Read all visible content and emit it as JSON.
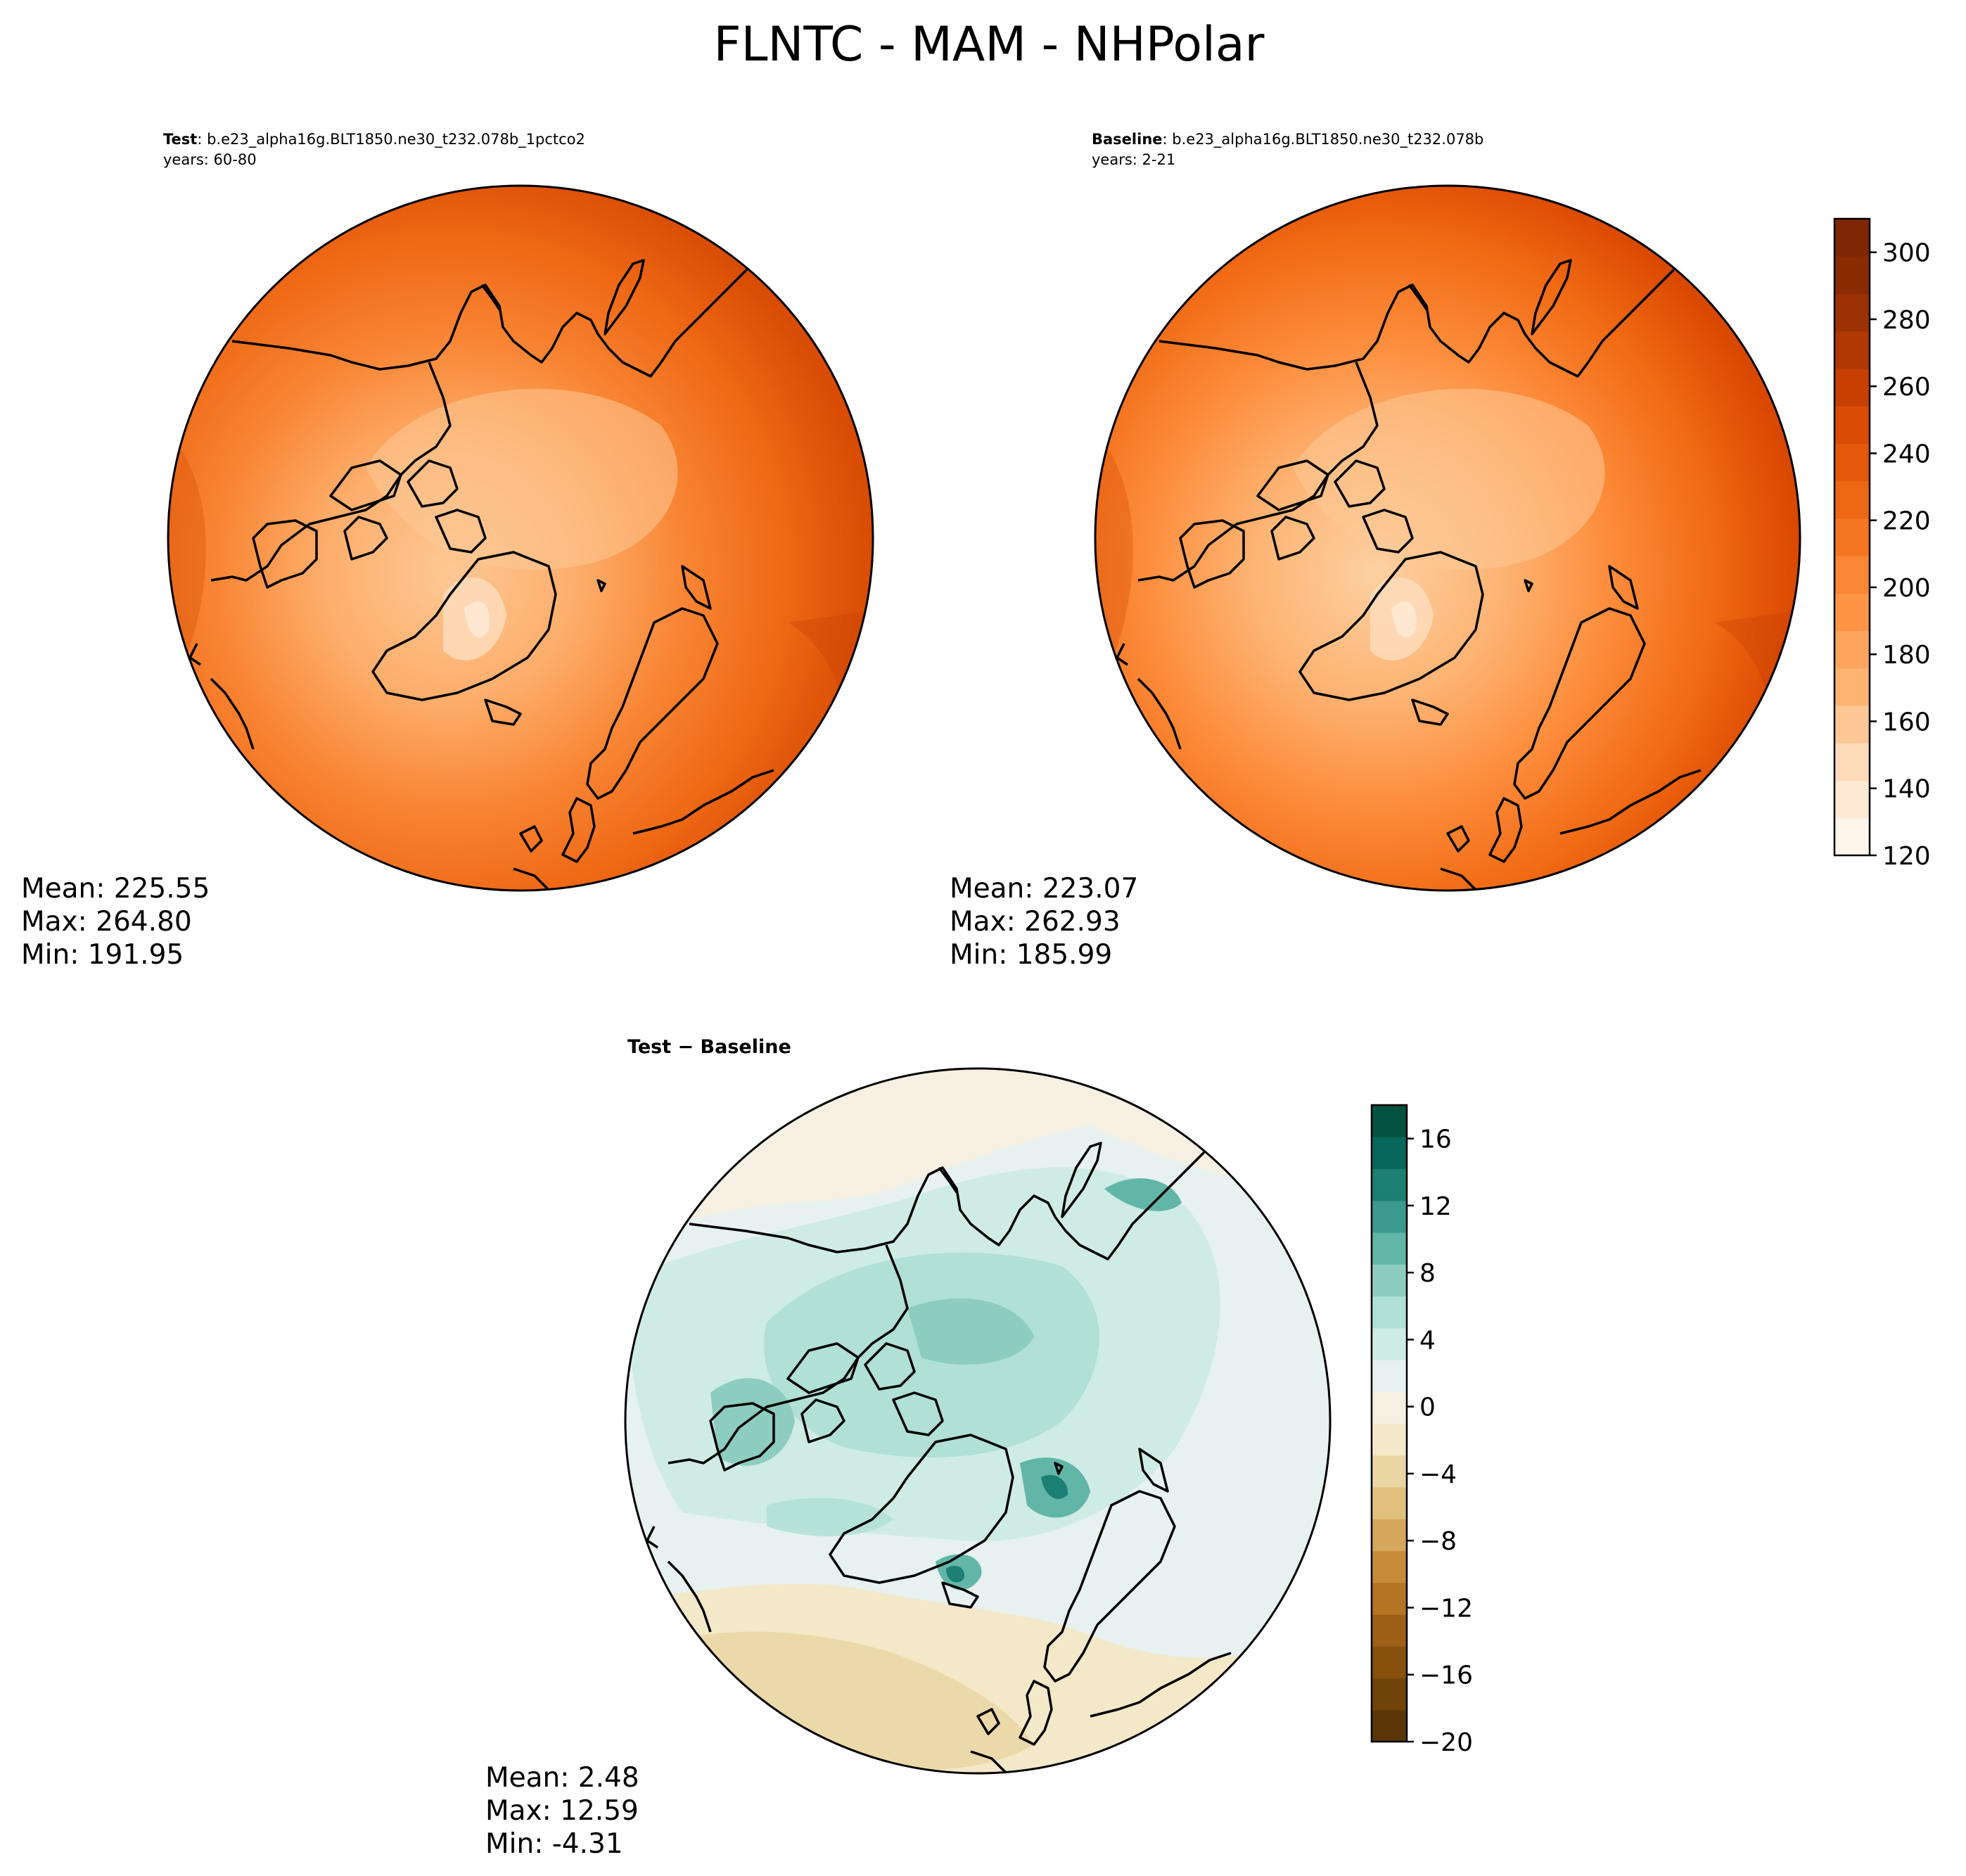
{
  "figure_title": "FLNTC - MAM - NHPolar",
  "panels": {
    "test": {
      "label": "Test",
      "case": ": b.e23_alpha16g.BLT1850.ne30_t232.078b_1pctco2",
      "years": "years: 60-80",
      "stats": {
        "mean": "Mean: 225.55",
        "max": "Max: 264.80",
        "min": "Min: 191.95"
      }
    },
    "baseline": {
      "label": "Baseline",
      "case": ": b.e23_alpha16g.BLT1850.ne30_t232.078b",
      "years": "years: 2-21",
      "stats": {
        "mean": "Mean: 223.07",
        "max": "Max: 262.93",
        "min": "Min: 185.99"
      }
    },
    "diff": {
      "title": "Test − Baseline",
      "stats": {
        "mean": "Mean:  2.48",
        "max": "Max: 12.59",
        "min": "Min: -4.31"
      }
    }
  },
  "colorbars": {
    "main": {
      "levels": [
        120,
        130,
        140,
        150,
        160,
        170,
        180,
        190,
        200,
        210,
        220,
        230,
        240,
        250,
        260,
        270,
        280,
        290,
        300,
        310
      ],
      "ticks": [
        "120",
        "140",
        "160",
        "180",
        "200",
        "220",
        "240",
        "260",
        "280",
        "300"
      ],
      "colors": [
        "#fff5eb",
        "#fee9d4",
        "#fedcbb",
        "#fdc895",
        "#fdb372",
        "#fda55d",
        "#fd9446",
        "#f98635",
        "#f57622",
        "#ee6714",
        "#e3580b",
        "#d84c04",
        "#c74002",
        "#b13802",
        "#9c3203",
        "#8a2b04",
        "#7f2704"
      ]
    },
    "diff": {
      "levels": [
        -20,
        -18,
        -16,
        -14,
        -12,
        -10,
        -8,
        -6,
        -4,
        -2,
        0,
        2,
        4,
        6,
        8,
        10,
        12,
        14,
        16,
        18
      ],
      "ticks": [
        "−20",
        "−16",
        "−12",
        "−8",
        "−4",
        "0",
        "4",
        "8",
        "12",
        "16"
      ],
      "colors": [
        "#5a3607",
        "#704309",
        "#87500c",
        "#9e5f16",
        "#b57424",
        "#c88b3a",
        "#d6a65c",
        "#e1c07e",
        "#ead6a3",
        "#f3e8c8",
        "#f5f0e1",
        "#e7f1ef",
        "#cfebe5",
        "#b0e0d6",
        "#8ccdbf",
        "#62b6a8",
        "#3b9a8d",
        "#1c7f73",
        "#08675b",
        "#01533f"
      ]
    }
  }
}
